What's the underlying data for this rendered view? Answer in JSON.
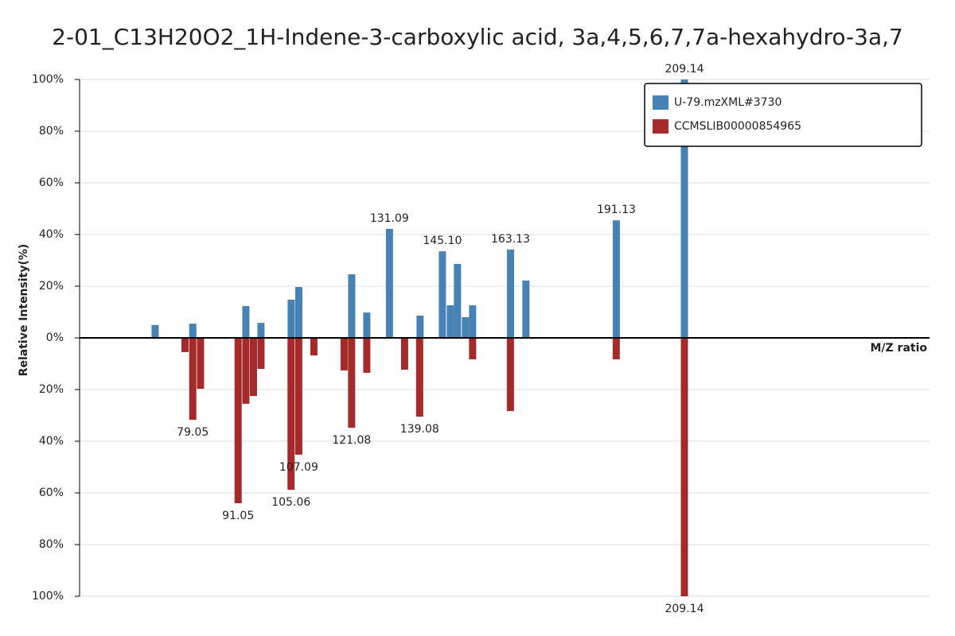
{
  "chart_data": {
    "type": "mirror_bar",
    "title": "2-01_C13H20O2_1H-Indene-3-carboxylic  acid,  3a,4,5,6,7,7a-hexahydro-3a,7",
    "x_label": "M/Z ratio",
    "y_label": "Relative Intensity(%)",
    "xlim": [
      49.1,
      274
    ],
    "ylim": [
      0,
      100
    ],
    "yticks": [
      {
        "value": 0,
        "label": "0%"
      },
      {
        "value": 20,
        "label": "20%"
      },
      {
        "value": 40,
        "label": "40%"
      },
      {
        "value": 60,
        "label": "60%"
      },
      {
        "value": 80,
        "label": "80%"
      },
      {
        "value": 100,
        "label": "100%"
      }
    ],
    "y2lim": [
      0,
      100
    ],
    "y2ticks": [
      {
        "value": 20,
        "label": "20%"
      },
      {
        "value": 40,
        "label": "40%"
      },
      {
        "value": 60,
        "label": "60%"
      },
      {
        "value": 80,
        "label": "80%"
      },
      {
        "value": 100,
        "label": "100%"
      }
    ],
    "grid": true,
    "legend": "top-right",
    "series": [
      {
        "name": "U-79.mzXML#3730",
        "color": "#4682b4",
        "x": [
          69.1,
          79.05,
          93.1,
          97.1,
          105.1,
          107.1,
          121.1,
          125.1,
          131.09,
          139.2,
          145.1,
          147.2,
          149.1,
          151.2,
          153.1,
          163.13,
          167.2,
          191.13,
          209.14
        ],
        "values": [
          5,
          5.5,
          12.3,
          5.8,
          14.8,
          19.7,
          24.6,
          9.8,
          42.2,
          8.6,
          33.5,
          12.6,
          28.6,
          8,
          12.6,
          34.2,
          22.2,
          45.5,
          100
        ],
        "labels": [
          null,
          null,
          null,
          null,
          null,
          null,
          null,
          null,
          "131.09",
          null,
          "145.10",
          null,
          null,
          null,
          null,
          "163.13",
          null,
          "191.13",
          "209.14"
        ]
      },
      {
        "name": "CCMSLIB00000854965",
        "color": "#a52a2a",
        "axis": "y2",
        "x": [
          77,
          79.05,
          81.1,
          91.05,
          93.1,
          95.1,
          97.1,
          105.06,
          107.09,
          111.1,
          119.1,
          121.08,
          125.1,
          135.1,
          139.08,
          153.1,
          163.1,
          191.1,
          209.14
        ],
        "values": [
          5.5,
          31.7,
          19.7,
          64,
          25.5,
          22.5,
          12,
          58.8,
          45.2,
          6.8,
          12.6,
          34.8,
          13.5,
          12.3,
          30.5,
          8.3,
          28.3,
          8.3,
          100
        ],
        "labels": [
          null,
          "79.05",
          null,
          "91.05",
          null,
          null,
          null,
          "105.06",
          "107.09",
          null,
          null,
          "121.08",
          null,
          null,
          "139.08",
          null,
          null,
          null,
          "209.14"
        ]
      }
    ]
  }
}
